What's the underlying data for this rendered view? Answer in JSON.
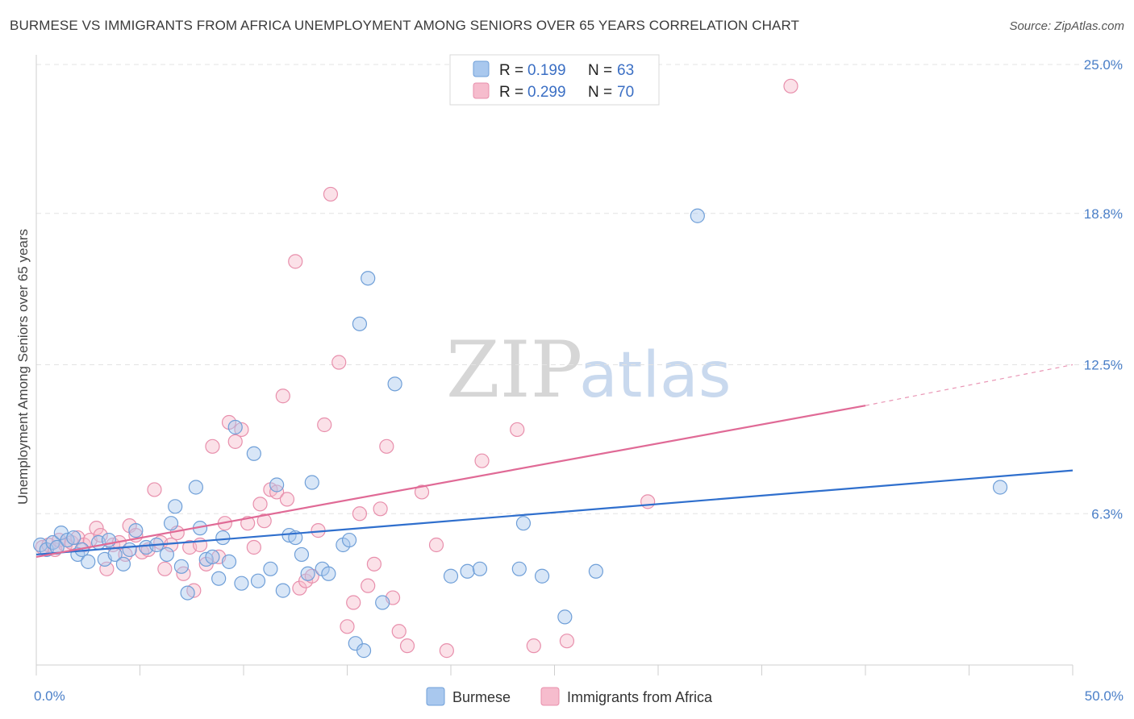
{
  "title": "BURMESE VS IMMIGRANTS FROM AFRICA UNEMPLOYMENT AMONG SENIORS OVER 65 YEARS CORRELATION CHART",
  "source": "Source: ZipAtlas.com",
  "colors": {
    "burmese_fill": "#a9c8ee",
    "burmese_stroke": "#6f9fd8",
    "burmese_line": "#2f6fcd",
    "africa_fill": "#f6bccd",
    "africa_stroke": "#e88fac",
    "africa_line": "#e06a96",
    "tick_text": "#4a7fc8"
  },
  "watermark": {
    "zip": "ZIP",
    "atlas": "atlas"
  },
  "legend": {
    "rows": [
      {
        "r_label": "R =",
        "r_value": "0.199",
        "n_label": "N =",
        "n_value": "63"
      },
      {
        "r_label": "R =",
        "r_value": "0.299",
        "n_label": "N =",
        "n_value": "70"
      }
    ]
  },
  "chart_data": {
    "type": "scatter",
    "title": "BURMESE VS IMMIGRANTS FROM AFRICA UNEMPLOYMENT AMONG SENIORS OVER 65 YEARS CORRELATION CHART",
    "xlabel": "",
    "ylabel": "Unemployment Among Seniors over 65 years",
    "xlim": [
      0,
      50
    ],
    "ylim": [
      0,
      25
    ],
    "x_tick_labels": [
      "0.0%",
      "50.0%"
    ],
    "y_tick_values": [
      6.3,
      12.5,
      18.8,
      25.0
    ],
    "y_tick_labels": [
      "6.3%",
      "12.5%",
      "18.8%",
      "25.0%"
    ],
    "legend_position": "top-center",
    "series": [
      {
        "name": "Burmese",
        "r": 0.199,
        "n": 63,
        "trend": {
          "x0": 0,
          "y0": 4.6,
          "x1": 50,
          "y1": 8.1
        },
        "points": [
          [
            0.2,
            5.0
          ],
          [
            0.5,
            4.8
          ],
          [
            0.8,
            5.1
          ],
          [
            1.0,
            4.9
          ],
          [
            1.2,
            5.5
          ],
          [
            1.5,
            5.2
          ],
          [
            1.8,
            5.3
          ],
          [
            2.0,
            4.6
          ],
          [
            2.5,
            4.3
          ],
          [
            3.0,
            5.1
          ],
          [
            3.3,
            4.4
          ],
          [
            3.8,
            4.6
          ],
          [
            4.2,
            4.2
          ],
          [
            4.5,
            4.8
          ],
          [
            4.8,
            5.6
          ],
          [
            5.3,
            4.9
          ],
          [
            5.8,
            5.0
          ],
          [
            6.3,
            4.6
          ],
          [
            6.5,
            5.9
          ],
          [
            6.7,
            6.6
          ],
          [
            7.0,
            4.1
          ],
          [
            7.3,
            3.0
          ],
          [
            7.7,
            7.4
          ],
          [
            7.9,
            5.7
          ],
          [
            8.2,
            4.4
          ],
          [
            8.5,
            4.5
          ],
          [
            8.8,
            3.6
          ],
          [
            9.0,
            5.3
          ],
          [
            9.3,
            4.3
          ],
          [
            9.6,
            9.9
          ],
          [
            9.9,
            3.4
          ],
          [
            10.5,
            8.8
          ],
          [
            10.7,
            3.5
          ],
          [
            11.3,
            4.0
          ],
          [
            11.6,
            7.5
          ],
          [
            11.9,
            3.1
          ],
          [
            12.2,
            5.4
          ],
          [
            12.5,
            5.3
          ],
          [
            12.8,
            4.6
          ],
          [
            13.1,
            3.8
          ],
          [
            13.3,
            7.6
          ],
          [
            13.8,
            4.0
          ],
          [
            14.1,
            3.8
          ],
          [
            14.8,
            5.0
          ],
          [
            15.1,
            5.2
          ],
          [
            15.4,
            0.9
          ],
          [
            15.6,
            14.2
          ],
          [
            15.8,
            0.6
          ],
          [
            16.0,
            16.1
          ],
          [
            16.7,
            2.6
          ],
          [
            17.3,
            11.7
          ],
          [
            20.0,
            3.7
          ],
          [
            20.8,
            3.9
          ],
          [
            21.4,
            4.0
          ],
          [
            23.3,
            4.0
          ],
          [
            23.5,
            5.9
          ],
          [
            24.4,
            3.7
          ],
          [
            25.5,
            2.0
          ],
          [
            27.0,
            3.9
          ],
          [
            31.9,
            18.7
          ],
          [
            46.5,
            7.4
          ],
          [
            3.5,
            5.2
          ],
          [
            2.2,
            4.8
          ]
        ]
      },
      {
        "name": "Immigrants from Africa",
        "r": 0.299,
        "n": 70,
        "trend": {
          "x0": 0,
          "y0": 4.5,
          "x1": 40,
          "y1": 10.8,
          "dash_x1": 50,
          "dash_y1": 12.5
        },
        "points": [
          [
            0.3,
            4.9
          ],
          [
            0.6,
            5.0
          ],
          [
            0.9,
            4.8
          ],
          [
            1.1,
            5.2
          ],
          [
            1.4,
            5.0
          ],
          [
            1.7,
            5.1
          ],
          [
            2.0,
            5.3
          ],
          [
            2.3,
            5.0
          ],
          [
            2.6,
            5.2
          ],
          [
            2.9,
            5.7
          ],
          [
            3.1,
            5.4
          ],
          [
            3.4,
            4.0
          ],
          [
            3.7,
            5.0
          ],
          [
            4.0,
            5.1
          ],
          [
            4.3,
            4.6
          ],
          [
            4.5,
            5.8
          ],
          [
            4.8,
            5.4
          ],
          [
            5.1,
            4.7
          ],
          [
            5.4,
            4.8
          ],
          [
            5.7,
            7.3
          ],
          [
            6.0,
            5.1
          ],
          [
            6.2,
            4.0
          ],
          [
            6.5,
            5.0
          ],
          [
            6.8,
            5.5
          ],
          [
            7.1,
            3.8
          ],
          [
            7.4,
            4.9
          ],
          [
            7.6,
            3.1
          ],
          [
            7.9,
            5.0
          ],
          [
            8.2,
            4.2
          ],
          [
            8.5,
            9.1
          ],
          [
            8.8,
            4.5
          ],
          [
            9.1,
            5.9
          ],
          [
            9.3,
            10.1
          ],
          [
            9.6,
            9.3
          ],
          [
            9.9,
            9.8
          ],
          [
            10.2,
            5.9
          ],
          [
            10.5,
            4.9
          ],
          [
            10.8,
            6.7
          ],
          [
            11.0,
            6.0
          ],
          [
            11.3,
            7.3
          ],
          [
            11.6,
            7.2
          ],
          [
            11.9,
            11.2
          ],
          [
            12.1,
            6.9
          ],
          [
            12.5,
            16.8
          ],
          [
            12.7,
            3.2
          ],
          [
            13.0,
            3.5
          ],
          [
            13.3,
            3.7
          ],
          [
            13.6,
            5.6
          ],
          [
            13.9,
            10.0
          ],
          [
            14.2,
            19.6
          ],
          [
            14.6,
            12.6
          ],
          [
            15.0,
            1.6
          ],
          [
            15.3,
            2.6
          ],
          [
            15.6,
            6.3
          ],
          [
            16.0,
            3.3
          ],
          [
            16.3,
            4.2
          ],
          [
            16.6,
            6.5
          ],
          [
            16.9,
            9.1
          ],
          [
            17.2,
            2.8
          ],
          [
            17.5,
            1.4
          ],
          [
            17.9,
            0.8
          ],
          [
            18.6,
            7.2
          ],
          [
            19.3,
            5.0
          ],
          [
            19.8,
            0.6
          ],
          [
            21.5,
            8.5
          ],
          [
            23.2,
            9.8
          ],
          [
            24.0,
            0.8
          ],
          [
            25.6,
            1.0
          ],
          [
            29.5,
            6.8
          ],
          [
            36.4,
            24.1
          ]
        ]
      }
    ]
  },
  "bottom_legend": [
    {
      "label": "Burmese"
    },
    {
      "label": "Immigrants from Africa"
    }
  ]
}
